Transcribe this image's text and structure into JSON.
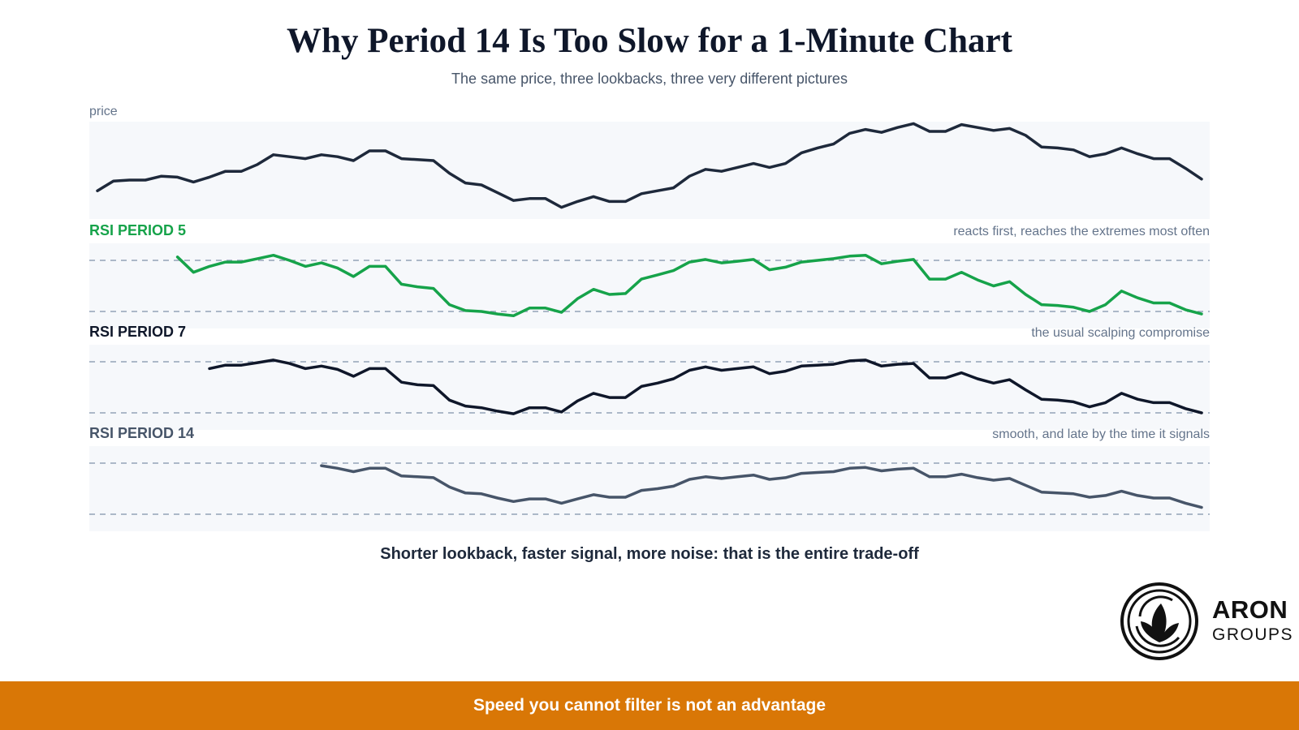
{
  "title": "Why Period 14 Is Too Slow for a 1-Minute Chart",
  "subtitle": "The same price, three lookbacks, three very different pictures",
  "takeaway": "Shorter lookback, faster signal, more noise: that is the entire trade-off",
  "banner": "Speed you cannot filter is not an advantage",
  "logo": {
    "name": "ARON",
    "sub": "GROUPS"
  },
  "colors": {
    "price": "#1e293b",
    "rsi5": "#16a34a",
    "rsi7": "#0f172a",
    "rsi14": "#475569",
    "panel_bg": "#f6f8fb",
    "threshold": "#94a3b8",
    "banner": "#d97706"
  },
  "chart_data": [
    {
      "type": "line",
      "label": "price",
      "note": "",
      "series": [
        {
          "values": [
            29,
            39,
            40,
            40,
            44,
            43,
            38,
            43,
            49,
            49,
            56,
            66,
            64,
            62,
            66,
            64,
            60,
            70,
            70,
            62,
            61,
            60,
            47,
            37,
            35,
            27,
            19,
            21,
            21,
            12,
            18,
            23,
            18,
            18,
            26,
            29,
            32,
            44,
            51,
            49,
            53,
            57,
            53,
            57,
            68,
            73,
            77,
            88,
            92,
            89,
            94,
            98,
            90,
            90,
            97,
            94,
            91,
            93,
            86,
            74,
            73,
            71,
            64,
            67,
            73,
            67,
            62,
            62,
            52,
            41
          ]
        }
      ]
    },
    {
      "type": "line",
      "label": "RSI PERIOD 5",
      "note": "reacts first, reaches the extremes most often",
      "thresholds": [
        0.2,
        0.8
      ],
      "series": [
        {
          "values": [
            null,
            null,
            null,
            null,
            null,
            0.84,
            0.66,
            0.73,
            0.78,
            0.78,
            0.82,
            0.86,
            0.8,
            0.73,
            0.77,
            0.71,
            0.61,
            0.73,
            0.73,
            0.52,
            0.49,
            0.47,
            0.28,
            0.21,
            0.2,
            0.17,
            0.15,
            0.24,
            0.24,
            0.19,
            0.35,
            0.46,
            0.4,
            0.41,
            0.58,
            0.63,
            0.68,
            0.78,
            0.81,
            0.77,
            0.79,
            0.81,
            0.69,
            0.72,
            0.78,
            0.8,
            0.82,
            0.85,
            0.86,
            0.76,
            0.79,
            0.81,
            0.58,
            0.58,
            0.66,
            0.57,
            0.5,
            0.55,
            0.4,
            0.28,
            0.27,
            0.25,
            0.2,
            0.28,
            0.44,
            0.36,
            0.3,
            0.3,
            0.22,
            0.17
          ]
        }
      ]
    },
    {
      "type": "line",
      "label": "RSI PERIOD 7",
      "note": "the usual scalping compromise",
      "thresholds": [
        0.2,
        0.8
      ],
      "series": [
        {
          "values": [
            null,
            null,
            null,
            null,
            null,
            null,
            null,
            0.72,
            0.76,
            0.76,
            0.79,
            0.82,
            0.78,
            0.72,
            0.75,
            0.71,
            0.63,
            0.72,
            0.72,
            0.56,
            0.53,
            0.52,
            0.35,
            0.28,
            0.26,
            0.22,
            0.19,
            0.26,
            0.26,
            0.21,
            0.34,
            0.43,
            0.38,
            0.38,
            0.51,
            0.55,
            0.6,
            0.7,
            0.74,
            0.7,
            0.72,
            0.74,
            0.66,
            0.69,
            0.75,
            0.76,
            0.77,
            0.81,
            0.82,
            0.75,
            0.77,
            0.78,
            0.61,
            0.61,
            0.67,
            0.6,
            0.55,
            0.59,
            0.47,
            0.36,
            0.35,
            0.33,
            0.27,
            0.32,
            0.43,
            0.36,
            0.32,
            0.32,
            0.25,
            0.2
          ]
        }
      ]
    },
    {
      "type": "line",
      "label": "RSI PERIOD 14",
      "note": "smooth, and late by the time it signals",
      "thresholds": [
        0.2,
        0.8
      ],
      "series": [
        {
          "values": [
            null,
            null,
            null,
            null,
            null,
            null,
            null,
            null,
            null,
            null,
            null,
            null,
            null,
            null,
            0.77,
            0.74,
            0.7,
            0.74,
            0.74,
            0.65,
            0.64,
            0.63,
            0.52,
            0.45,
            0.44,
            0.39,
            0.35,
            0.38,
            0.38,
            0.33,
            0.38,
            0.43,
            0.4,
            0.4,
            0.48,
            0.5,
            0.53,
            0.61,
            0.64,
            0.62,
            0.64,
            0.66,
            0.61,
            0.63,
            0.68,
            0.69,
            0.7,
            0.74,
            0.75,
            0.71,
            0.73,
            0.74,
            0.64,
            0.64,
            0.67,
            0.63,
            0.6,
            0.62,
            0.54,
            0.46,
            0.45,
            0.44,
            0.4,
            0.42,
            0.47,
            0.42,
            0.39,
            0.39,
            0.33,
            0.28
          ]
        }
      ]
    }
  ]
}
